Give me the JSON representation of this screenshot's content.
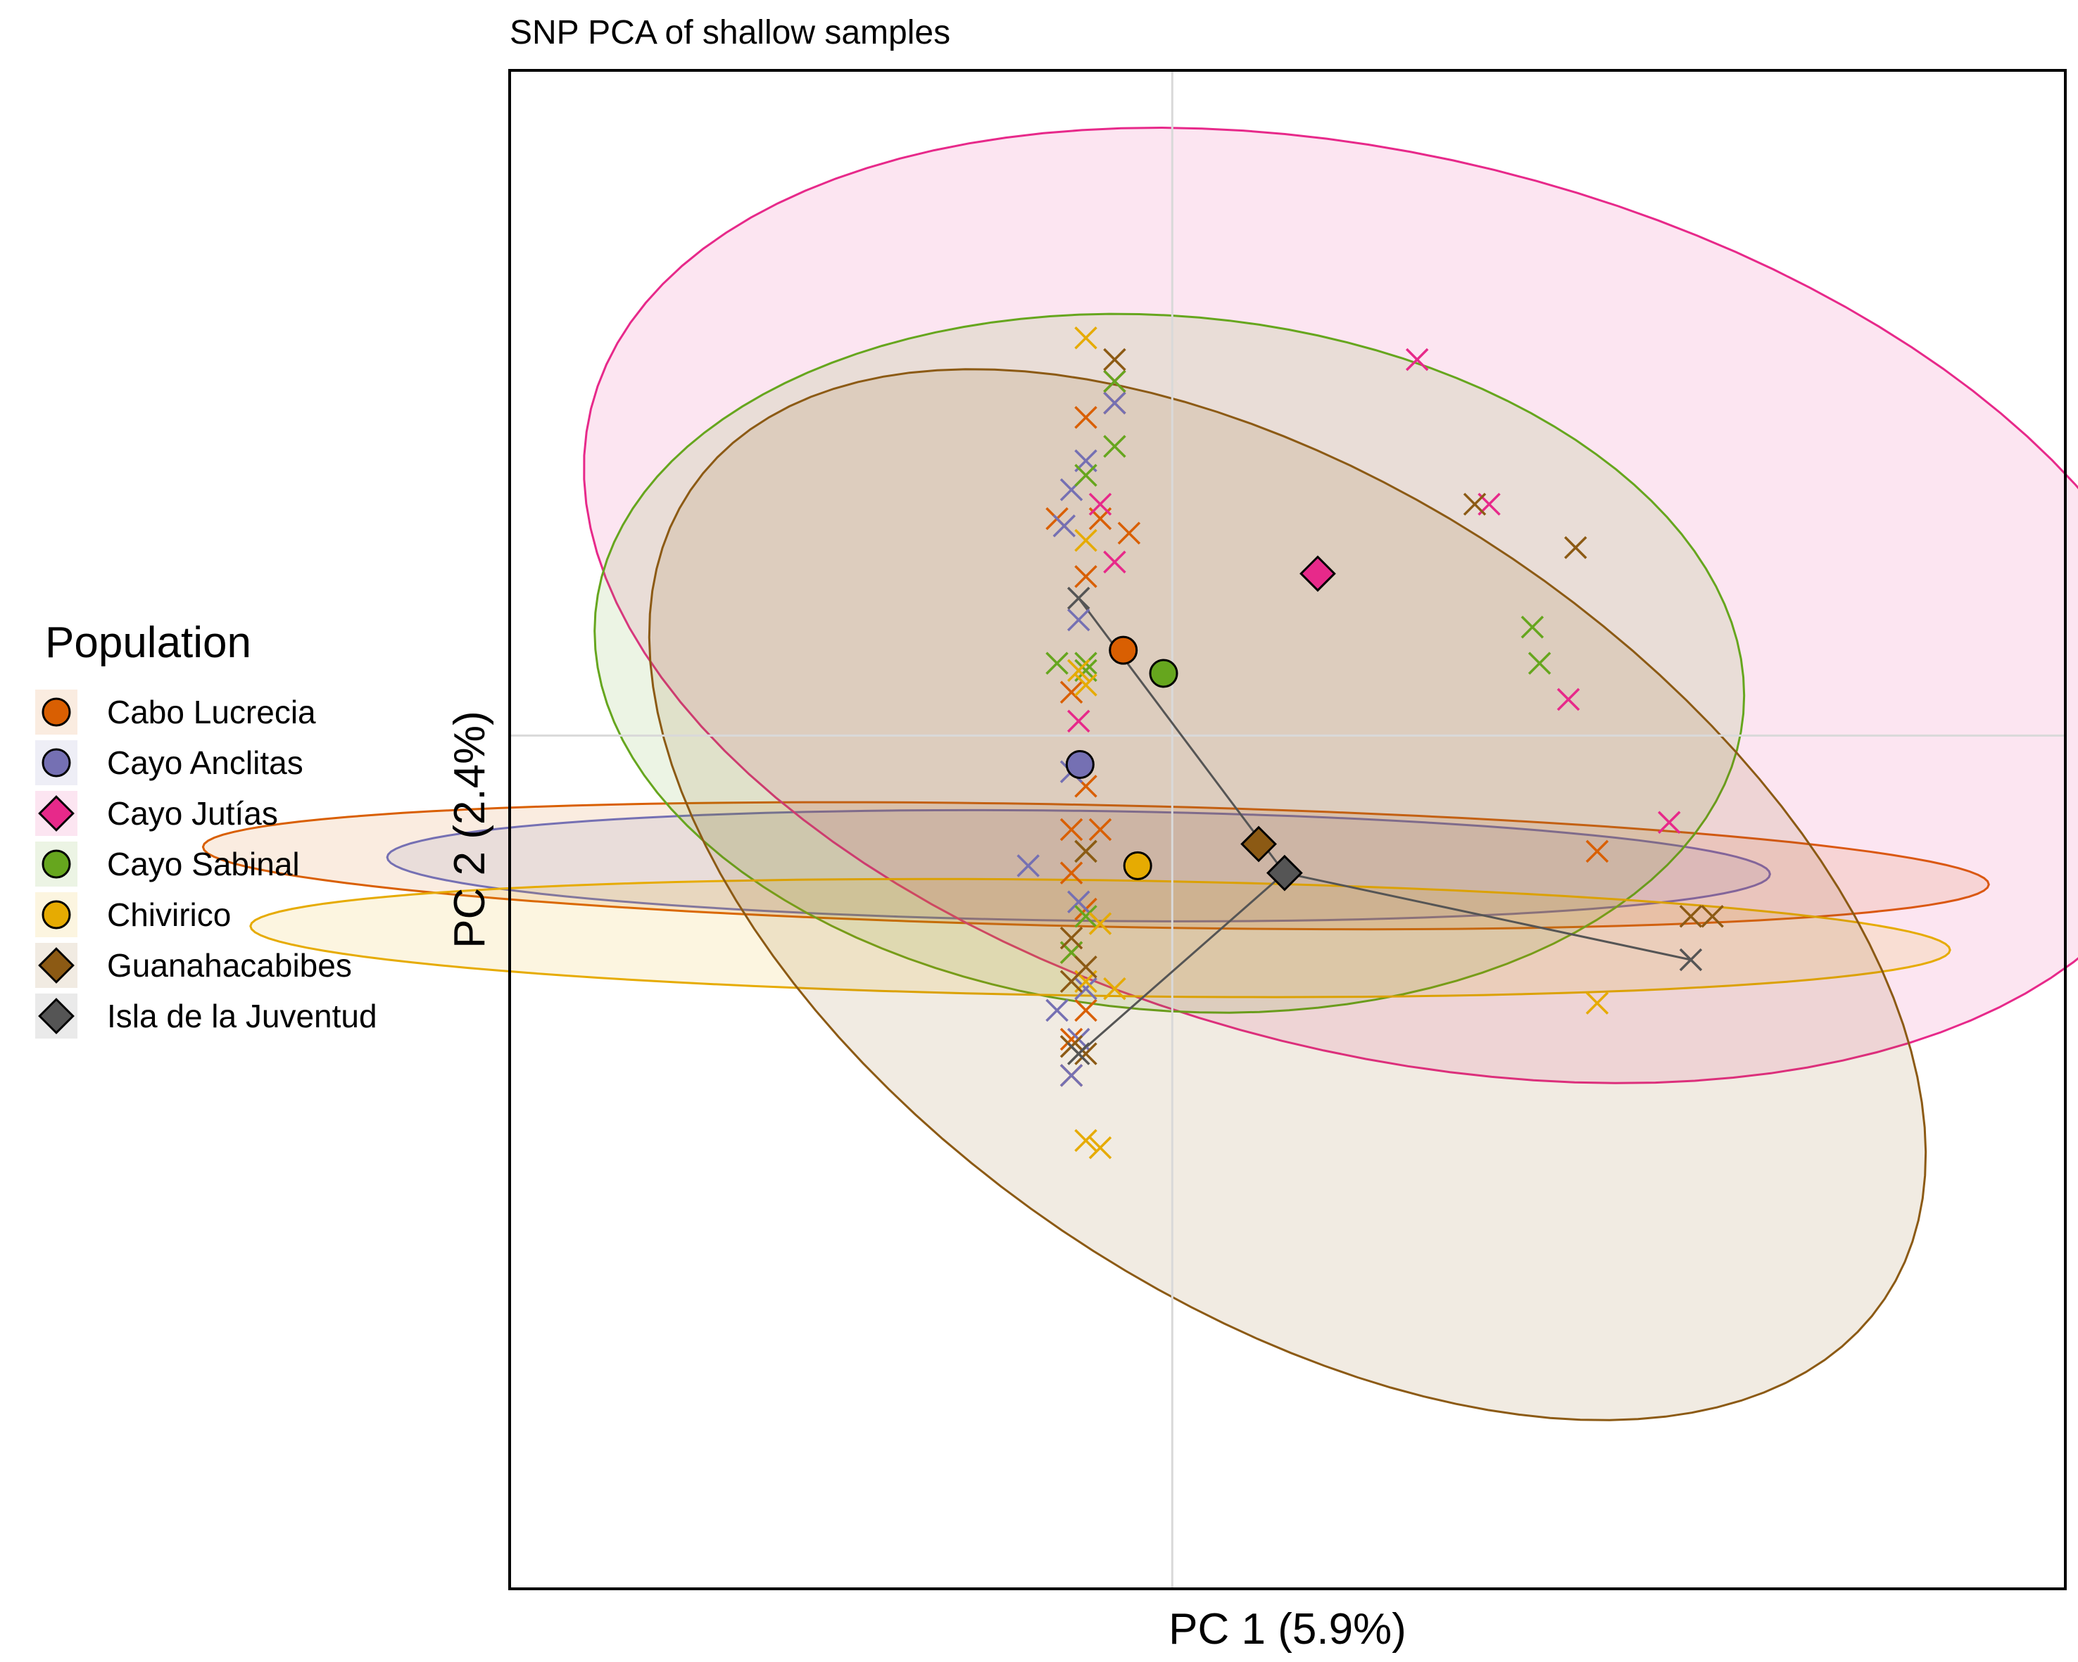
{
  "chart_data": {
    "type": "scatter",
    "title": "SNP PCA of shallow samples",
    "xlabel": "PC 1 (5.9%)",
    "ylabel": "PC 2 (2.4%)",
    "xlim": [
      -4.6,
      6.2
    ],
    "ylim": [
      -5.9,
      4.6
    ],
    "grid": false,
    "zero_lines": true,
    "legend": {
      "title": "Population",
      "position": "left"
    },
    "series": [
      {
        "name": "Cabo Lucrecia",
        "color": "#D95F02",
        "centroid_shape": "circle",
        "centroid": [
          -0.34,
          0.59
        ],
        "ellipse": {
          "cx": -0.53,
          "cy": -0.9,
          "rx": 0.42,
          "ry": 6.2,
          "angle": 88.8
        },
        "points": [
          [
            -0.6,
            2.2
          ],
          [
            -0.4,
            2.3
          ],
          [
            -0.5,
            1.5
          ],
          [
            -0.8,
            1.5
          ],
          [
            -0.3,
            1.4
          ],
          [
            -0.6,
            1.1
          ],
          [
            -0.7,
            0.3
          ],
          [
            -0.6,
            -0.35
          ],
          [
            -0.7,
            -0.65
          ],
          [
            -0.5,
            -0.65
          ],
          [
            -0.7,
            -0.95
          ],
          [
            -0.6,
            -1.2
          ],
          [
            -0.7,
            -1.5
          ],
          [
            -0.6,
            -1.9
          ],
          [
            -0.7,
            -2.1
          ],
          [
            -0.7,
            -2.35
          ],
          [
            2.95,
            -0.8
          ]
        ]
      },
      {
        "name": "Cayo Anclitas",
        "color": "#7570B3",
        "centroid_shape": "circle",
        "centroid": [
          -0.64,
          -0.2
        ],
        "ellipse": {
          "cx": -0.65,
          "cy": -0.9,
          "rx": 0.38,
          "ry": 4.8,
          "angle": 89.3
        },
        "points": [
          [
            -0.6,
            1.9
          ],
          [
            -0.7,
            1.7
          ],
          [
            -0.4,
            2.3
          ],
          [
            -0.75,
            1.45
          ],
          [
            -0.65,
            0.8
          ],
          [
            -0.7,
            -0.25
          ],
          [
            -1.0,
            -0.9
          ],
          [
            -0.65,
            -1.15
          ],
          [
            -0.6,
            -1.75
          ],
          [
            -0.8,
            -1.9
          ],
          [
            -0.65,
            -2.1
          ],
          [
            -0.7,
            -2.35
          ]
        ]
      },
      {
        "name": "Cayo Jutías",
        "color": "#E7298A",
        "centroid_shape": "diamond",
        "centroid": [
          1.01,
          1.12
        ],
        "ellipse": {
          "cx": 1.5,
          "cy": 0.9,
          "rx": 5.7,
          "ry": 3.1,
          "angle": -13.8
        },
        "points": [
          [
            -0.4,
            2.45
          ],
          [
            -0.5,
            1.6
          ],
          [
            -0.4,
            1.2
          ],
          [
            -0.65,
            0.1
          ],
          [
            1.7,
            2.6
          ],
          [
            2.2,
            1.6
          ],
          [
            2.75,
            0.25
          ],
          [
            3.45,
            -0.6
          ]
        ]
      },
      {
        "name": "Cayo Sabinal",
        "color": "#66A61E",
        "centroid_shape": "circle",
        "centroid": [
          -0.06,
          0.43
        ],
        "ellipse": {
          "cx": -0.02,
          "cy": 0.5,
          "rx": 2.4,
          "ry": 4.0,
          "angle": 85.0
        },
        "points": [
          [
            -0.4,
            2.45
          ],
          [
            -0.4,
            2.0
          ],
          [
            -0.6,
            1.8
          ],
          [
            -0.6,
            0.5
          ],
          [
            -0.8,
            0.5
          ],
          [
            -0.6,
            0.45
          ],
          [
            -0.6,
            -0.8
          ],
          [
            -0.6,
            -1.25
          ],
          [
            -0.7,
            -1.5
          ],
          [
            2.5,
            0.75
          ],
          [
            2.55,
            0.5
          ]
        ]
      },
      {
        "name": "Chivirico",
        "color": "#E6AB02",
        "centroid_shape": "circle",
        "centroid": [
          -0.24,
          -0.9
        ],
        "ellipse": {
          "cx": -0.5,
          "cy": -1.4,
          "rx": 0.4,
          "ry": 5.9,
          "angle": 89.2
        },
        "points": [
          [
            -0.6,
            2.75
          ],
          [
            -0.6,
            1.35
          ],
          [
            -0.65,
            0.45
          ],
          [
            -0.6,
            0.35
          ],
          [
            -0.5,
            -1.3
          ],
          [
            -0.6,
            -1.7
          ],
          [
            -0.4,
            -1.75
          ],
          [
            -0.6,
            -2.8
          ],
          [
            -0.5,
            -2.85
          ],
          [
            2.95,
            -1.85
          ]
        ]
      },
      {
        "name": "Guanahacabibes",
        "color": "#8C5A14",
        "centroid_shape": "diamond",
        "centroid": [
          0.6,
          -0.75
        ],
        "ellipse": {
          "cx": 0.8,
          "cy": -1.1,
          "rx": 5.0,
          "ry": 2.8,
          "angle": -34.0
        },
        "points": [
          [
            -0.4,
            2.6
          ],
          [
            -0.6,
            -0.8
          ],
          [
            -0.7,
            -1.4
          ],
          [
            -0.6,
            -1.6
          ],
          [
            -0.7,
            -1.7
          ],
          [
            -0.7,
            -2.15
          ],
          [
            -0.6,
            -2.2
          ],
          [
            2.1,
            1.6
          ],
          [
            2.8,
            1.3
          ],
          [
            3.6,
            -1.25
          ],
          [
            3.75,
            -1.25
          ]
        ]
      },
      {
        "name": "Isla de la Juventud",
        "color": "#555555",
        "centroid_shape": "diamond",
        "centroid": [
          0.78,
          -0.95
        ],
        "points": [
          [
            -0.65,
            0.95
          ],
          [
            3.6,
            -1.55
          ],
          [
            -0.65,
            -2.2
          ]
        ]
      }
    ]
  }
}
